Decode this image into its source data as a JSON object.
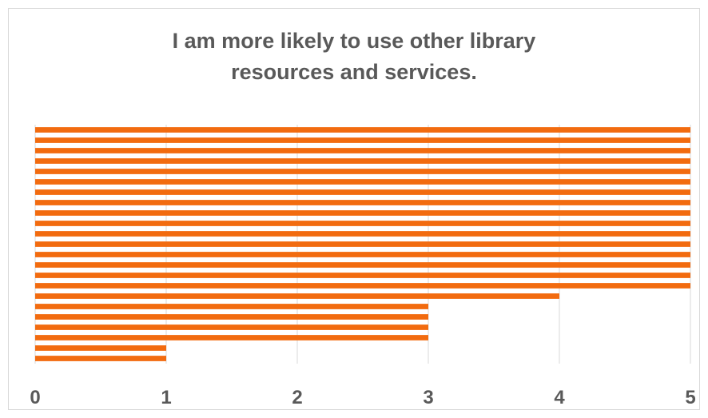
{
  "chart_data": {
    "type": "bar",
    "orientation": "horizontal",
    "title_lines": [
      "I am more likely to use other library",
      "resources and services."
    ],
    "xlim": [
      0,
      5
    ],
    "xticks": [
      "0",
      "1",
      "2",
      "3",
      "4",
      "5"
    ],
    "grid": true,
    "legend": "none",
    "bar_color": "#F26B0F",
    "values": [
      5,
      5,
      5,
      5,
      5,
      5,
      5,
      5,
      5,
      5,
      5,
      5,
      5,
      5,
      5,
      5,
      4,
      3,
      3,
      3,
      3,
      1,
      1
    ]
  }
}
